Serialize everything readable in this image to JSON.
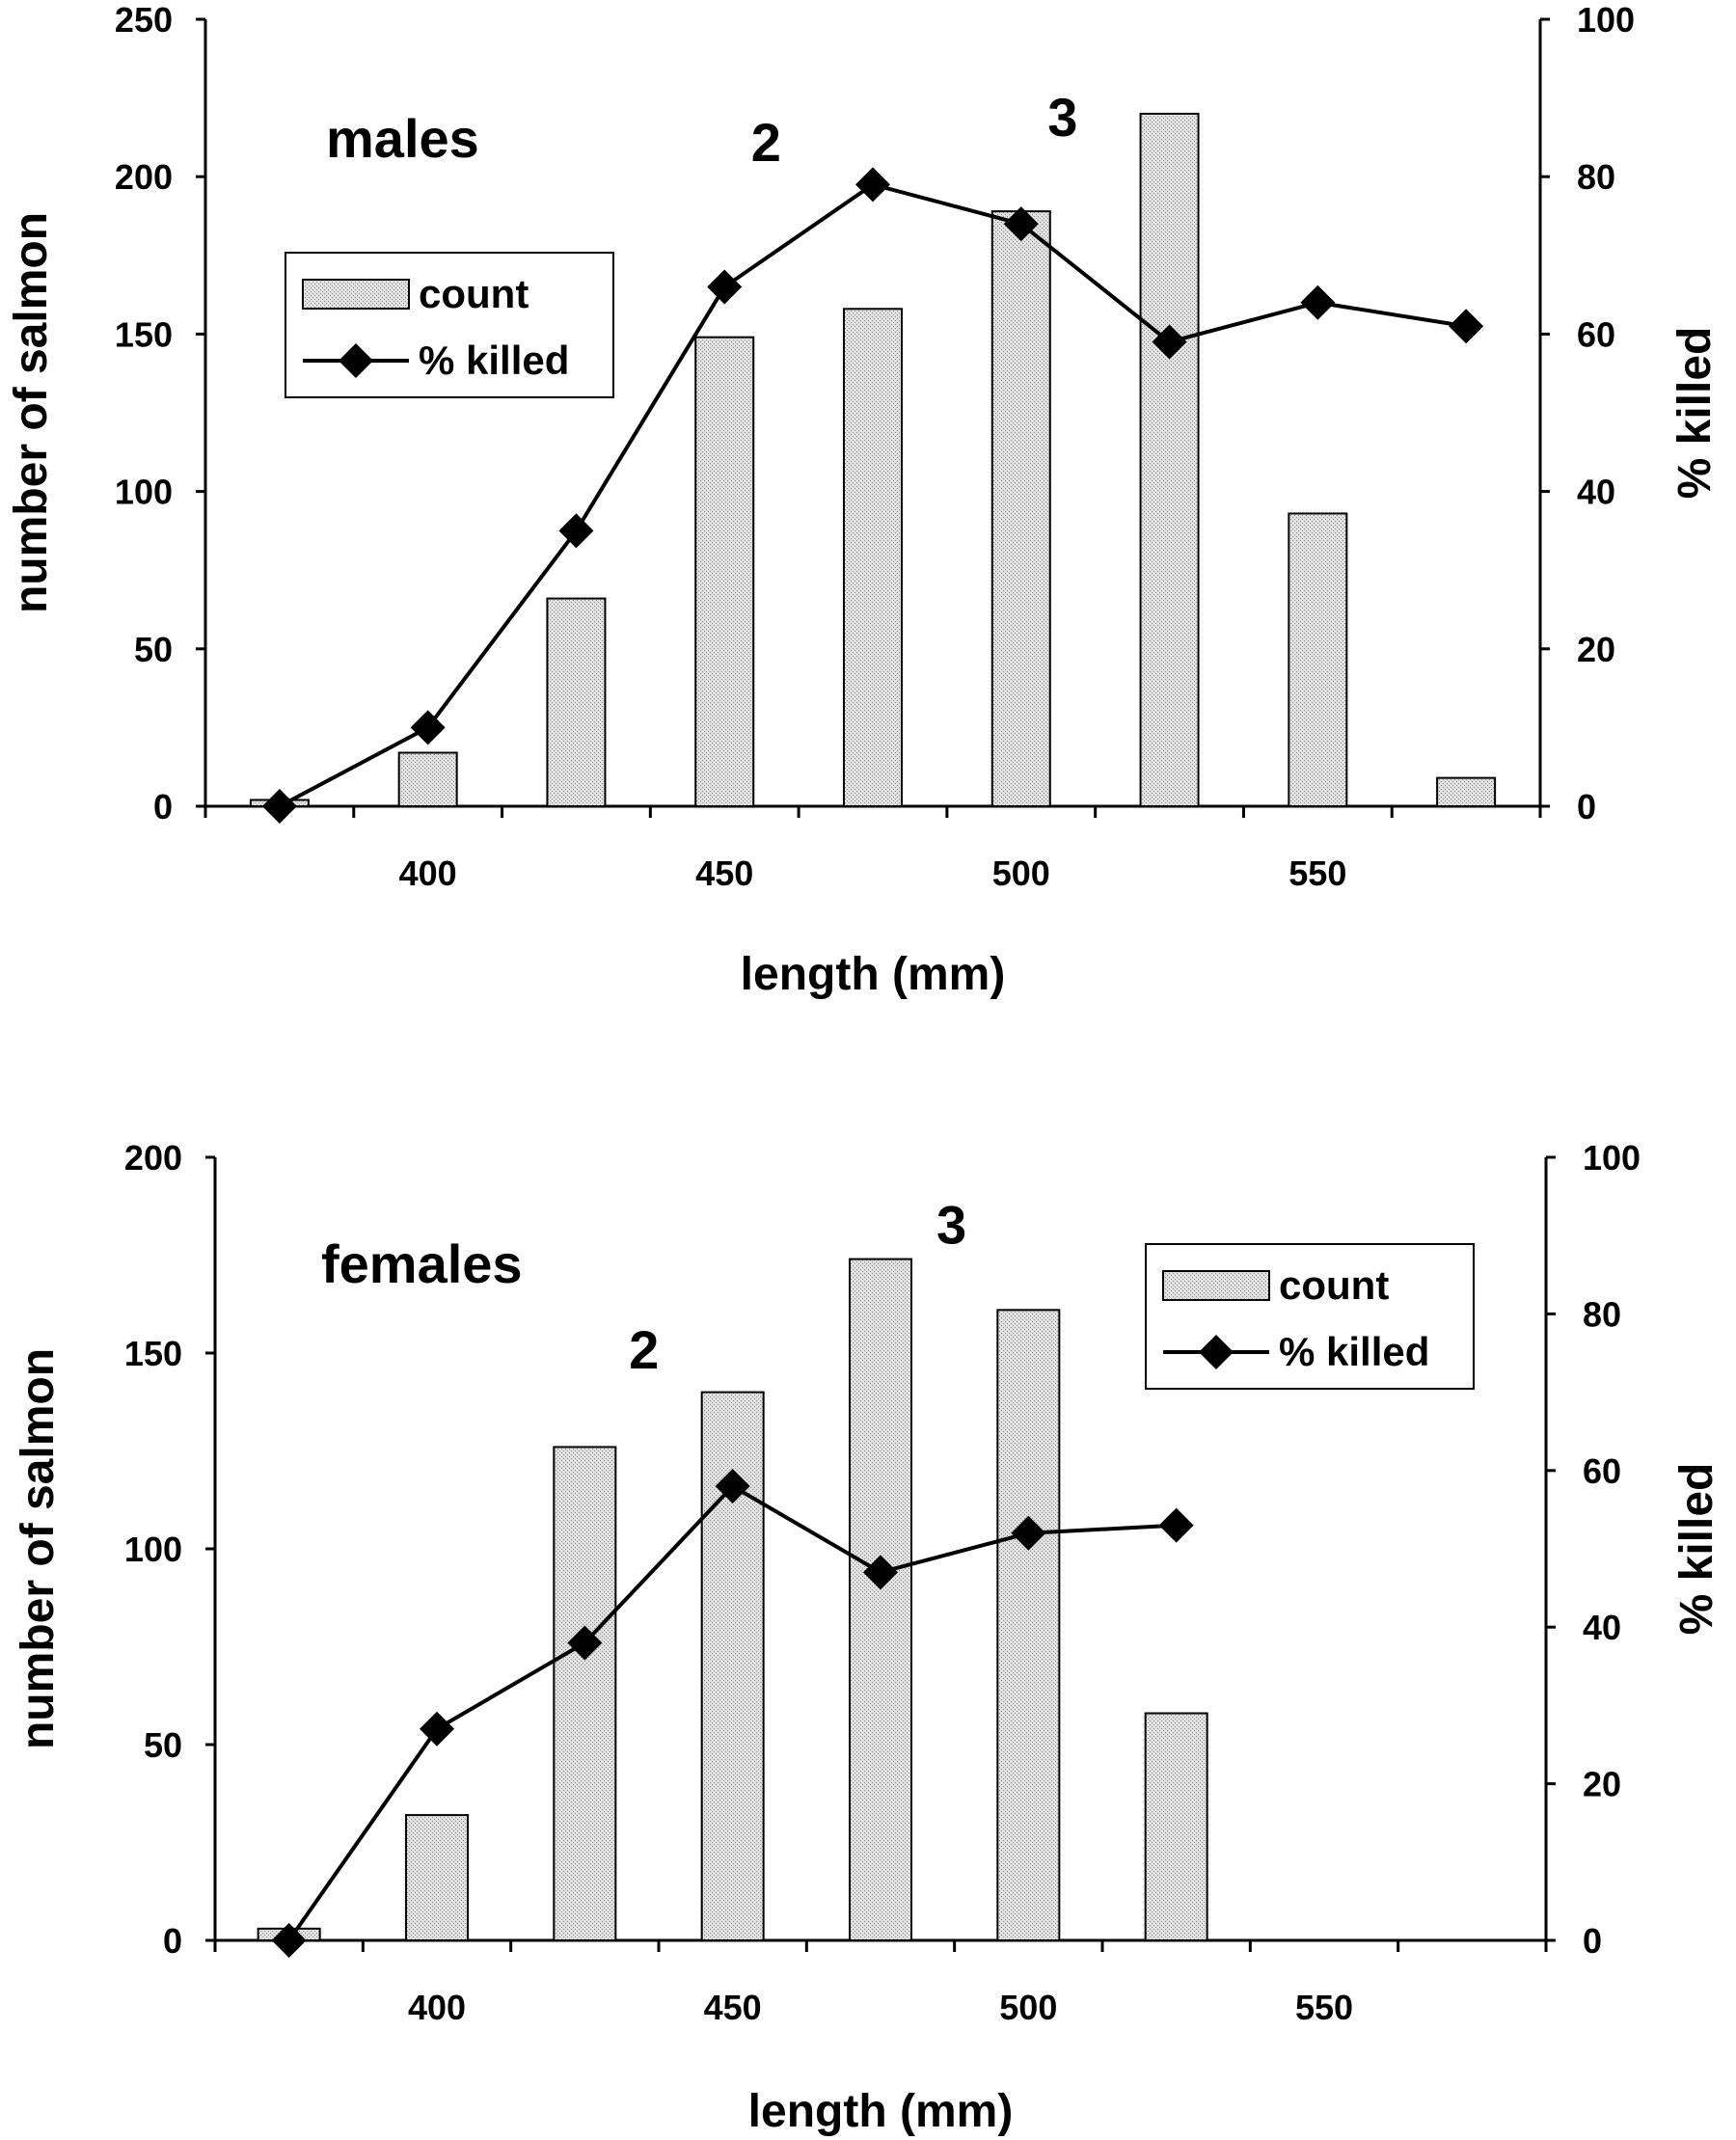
{
  "chart_data": [
    {
      "type": "bar",
      "panel_label": "males",
      "xlabel": "length (mm)",
      "ylabel": "number of salmon",
      "y2label": "% killed",
      "x_ticks": [
        400,
        450,
        500,
        550
      ],
      "xlim": [
        362.5,
        587.5
      ],
      "ylim": [
        0,
        250
      ],
      "y_ticks": [
        0,
        50,
        100,
        150,
        200,
        250
      ],
      "y2lim": [
        0,
        100
      ],
      "y2_ticks": [
        0,
        20,
        40,
        60,
        80,
        100
      ],
      "legend": {
        "position": "upper-left",
        "entries": [
          "count",
          "% killed"
        ]
      },
      "annotations": [
        {
          "text": "2",
          "x": 457,
          "y": 205
        },
        {
          "text": "3",
          "x": 507,
          "y": 213
        }
      ],
      "series": [
        {
          "name": "count",
          "kind": "bar",
          "x": [
            375,
            400,
            425,
            450,
            475,
            500,
            525,
            550,
            575
          ],
          "values": [
            2,
            17,
            66,
            149,
            158,
            189,
            220,
            93,
            9
          ]
        },
        {
          "name": "% killed",
          "kind": "line",
          "axis": "right",
          "x": [
            375,
            400,
            425,
            450,
            475,
            500,
            525,
            550,
            575
          ],
          "values": [
            0,
            10,
            35,
            66,
            79,
            74,
            59,
            64,
            61
          ]
        }
      ]
    },
    {
      "type": "bar",
      "panel_label": "females",
      "xlabel": "length (mm)",
      "ylabel": "number of salmon",
      "y2label": "% killed",
      "x_ticks": [
        400,
        450,
        500,
        550
      ],
      "xlim": [
        362.5,
        587.5
      ],
      "ylim": [
        0,
        200
      ],
      "y_ticks": [
        0,
        50,
        100,
        150,
        200
      ],
      "y2lim": [
        0,
        100
      ],
      "y2_ticks": [
        0,
        20,
        40,
        60,
        80,
        100
      ],
      "legend": {
        "position": "upper-right",
        "entries": [
          "count",
          "% killed"
        ]
      },
      "annotations": [
        {
          "text": "2",
          "x": 435,
          "y": 146
        },
        {
          "text": "3",
          "x": 487,
          "y": 178
        }
      ],
      "series": [
        {
          "name": "count",
          "kind": "bar",
          "x": [
            375,
            400,
            425,
            450,
            475,
            500,
            525
          ],
          "values": [
            3,
            32,
            126,
            140,
            174,
            161,
            58
          ]
        },
        {
          "name": "% killed",
          "kind": "line",
          "axis": "right",
          "x": [
            375,
            400,
            425,
            450,
            475,
            500,
            525
          ],
          "values": [
            0,
            27,
            38,
            58,
            47,
            52,
            53
          ]
        }
      ]
    }
  ]
}
